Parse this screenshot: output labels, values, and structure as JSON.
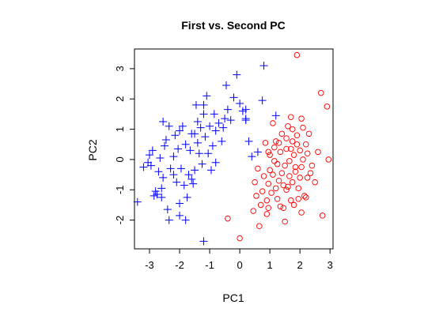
{
  "chart_data": {
    "type": "scatter",
    "title": "First vs. Second PC",
    "xlabel": "PC1",
    "ylabel": "PC2",
    "xlim": [
      -3.5,
      3.1
    ],
    "ylim": [
      -2.95,
      3.65
    ],
    "xticks": [
      -3,
      -2,
      -1,
      0,
      1,
      2,
      3
    ],
    "yticks": [
      -2,
      -1,
      0,
      1,
      2,
      3
    ],
    "grid": false,
    "series": [
      {
        "marker": "plus",
        "color": "#0000ff",
        "points": [
          [
            -3.4,
            -1.4
          ],
          [
            -3.2,
            -0.25
          ],
          [
            -3.05,
            -0.1
          ],
          [
            -3.0,
            0.15
          ],
          [
            -2.95,
            -0.2
          ],
          [
            -2.9,
            0.3
          ],
          [
            -2.85,
            -1.2
          ],
          [
            -2.8,
            -1.05
          ],
          [
            -2.75,
            -1.15
          ],
          [
            -2.7,
            -0.4
          ],
          [
            -2.65,
            0.05
          ],
          [
            -2.6,
            -1.25
          ],
          [
            -2.55,
            -0.6
          ],
          [
            -2.55,
            1.25
          ],
          [
            -2.5,
            0.45
          ],
          [
            -2.45,
            0.65
          ],
          [
            -2.4,
            -1.65
          ],
          [
            -2.35,
            -2.0
          ],
          [
            -2.35,
            1.1
          ],
          [
            -2.3,
            -0.3
          ],
          [
            -2.2,
            0.1
          ],
          [
            -2.15,
            0.8
          ],
          [
            -2.1,
            -0.75
          ],
          [
            -2.05,
            0.35
          ],
          [
            -2.0,
            -1.85
          ],
          [
            -2.0,
            0.95
          ],
          [
            -1.95,
            -0.3
          ],
          [
            -1.9,
            1.1
          ],
          [
            -1.85,
            -0.85
          ],
          [
            -1.8,
            0.5
          ],
          [
            -1.75,
            -1.25
          ],
          [
            -1.7,
            -0.5
          ],
          [
            -1.65,
            0.3
          ],
          [
            -1.6,
            0.85
          ],
          [
            -1.55,
            -0.8
          ],
          [
            -1.5,
            -0.35
          ],
          [
            -1.45,
            1.8
          ],
          [
            -1.4,
            0.55
          ],
          [
            -1.35,
            0.2
          ],
          [
            -1.3,
            1.05
          ],
          [
            -1.25,
            -0.15
          ],
          [
            -1.2,
            1.8
          ],
          [
            -1.15,
            0.75
          ],
          [
            -1.1,
            2.1
          ],
          [
            -1.05,
            0.2
          ],
          [
            -1.0,
            1.1
          ],
          [
            -0.95,
            -0.35
          ],
          [
            -0.9,
            0.45
          ],
          [
            -0.85,
            1.5
          ],
          [
            -0.8,
            0.95
          ],
          [
            -0.7,
            1.2
          ],
          [
            -0.6,
            0.6
          ],
          [
            -0.55,
            1.05
          ],
          [
            -0.45,
            2.45
          ],
          [
            -0.4,
            1.65
          ],
          [
            -0.3,
            1.3
          ],
          [
            -0.2,
            2.05
          ],
          [
            -0.1,
            2.8
          ],
          [
            0.0,
            1.85
          ],
          [
            0.1,
            1.6
          ],
          [
            0.2,
            1.35
          ],
          [
            0.3,
            0.6
          ],
          [
            0.4,
            0.1
          ],
          [
            0.6,
            0.25
          ],
          [
            -2.0,
            -1.45
          ],
          [
            -1.8,
            -2.0
          ],
          [
            -1.2,
            -2.7
          ],
          [
            -2.6,
            -0.95
          ],
          [
            -2.2,
            -0.5
          ],
          [
            -1.6,
            -0.65
          ],
          [
            -0.8,
            -0.1
          ],
          [
            -1.4,
            1.25
          ],
          [
            -1.2,
            1.5
          ],
          [
            -0.5,
            1.35
          ],
          [
            0.2,
            1.3
          ],
          [
            0.8,
            3.1
          ],
          [
            0.75,
            1.95
          ],
          [
            1.2,
            1.45
          ],
          [
            0.2,
            1.65
          ],
          [
            -1.5,
            0.85
          ]
        ]
      },
      {
        "marker": "circle",
        "color": "#ff0000",
        "points": [
          [
            -0.4,
            -1.95
          ],
          [
            0.0,
            -2.6
          ],
          [
            0.45,
            -1.7
          ],
          [
            0.5,
            -0.75
          ],
          [
            0.55,
            -1.2
          ],
          [
            0.6,
            -0.3
          ],
          [
            0.7,
            -1.5
          ],
          [
            0.75,
            -1.05
          ],
          [
            0.8,
            -0.55
          ],
          [
            0.85,
            0.55
          ],
          [
            0.9,
            -1.35
          ],
          [
            0.95,
            -0.8
          ],
          [
            1.0,
            0.15
          ],
          [
            1.05,
            -1.1
          ],
          [
            1.1,
            -0.5
          ],
          [
            1.15,
            0.4
          ],
          [
            1.2,
            -0.95
          ],
          [
            1.25,
            -0.15
          ],
          [
            1.3,
            -0.7
          ],
          [
            1.35,
            0.25
          ],
          [
            1.4,
            -0.45
          ],
          [
            1.45,
            -1.6
          ],
          [
            1.5,
            -0.2
          ],
          [
            1.55,
            0.7
          ],
          [
            1.6,
            -0.9
          ],
          [
            1.65,
            -0.05
          ],
          [
            1.7,
            0.35
          ],
          [
            1.75,
            -0.75
          ],
          [
            1.8,
            0.15
          ],
          [
            1.85,
            -0.4
          ],
          [
            1.9,
            0.8
          ],
          [
            1.95,
            -0.95
          ],
          [
            2.0,
            0.3
          ],
          [
            2.05,
            -0.25
          ],
          [
            2.1,
            1.05
          ],
          [
            2.15,
            -1.2
          ],
          [
            2.2,
            0.5
          ],
          [
            2.25,
            -0.6
          ],
          [
            2.3,
            0.85
          ],
          [
            2.4,
            -0.2
          ],
          [
            2.5,
            -0.75
          ],
          [
            2.6,
            0.25
          ],
          [
            2.7,
            2.2
          ],
          [
            2.75,
            -1.85
          ],
          [
            2.9,
            1.75
          ],
          [
            2.95,
            0.0
          ],
          [
            1.9,
            3.45
          ],
          [
            1.7,
            1.4
          ],
          [
            1.6,
            1.1
          ],
          [
            2.05,
            1.35
          ],
          [
            1.1,
            1.2
          ],
          [
            1.3,
            0.55
          ],
          [
            0.9,
            -1.8
          ],
          [
            1.35,
            -1.55
          ],
          [
            1.5,
            -2.05
          ],
          [
            1.25,
            -1.3
          ],
          [
            1.7,
            -1.35
          ],
          [
            1.95,
            -1.3
          ],
          [
            2.2,
            -1.25
          ],
          [
            2.05,
            -1.75
          ],
          [
            1.8,
            -1.5
          ],
          [
            0.65,
            -2.2
          ],
          [
            0.95,
            -1.6
          ],
          [
            1.55,
            -1.0
          ],
          [
            1.4,
            0.85
          ],
          [
            1.75,
            0.6
          ],
          [
            1.15,
            -0.05
          ],
          [
            1.55,
            0.35
          ],
          [
            1.85,
            -0.25
          ],
          [
            2.1,
            0.0
          ],
          [
            2.25,
            0.2
          ],
          [
            1.65,
            -0.55
          ],
          [
            1.0,
            -0.35
          ],
          [
            1.45,
            -0.85
          ],
          [
            2.0,
            -0.6
          ],
          [
            1.2,
            0.6
          ],
          [
            0.95,
            0.25
          ],
          [
            2.35,
            -0.45
          ],
          [
            1.75,
            1.0
          ],
          [
            1.9,
            0.5
          ]
        ]
      }
    ]
  }
}
